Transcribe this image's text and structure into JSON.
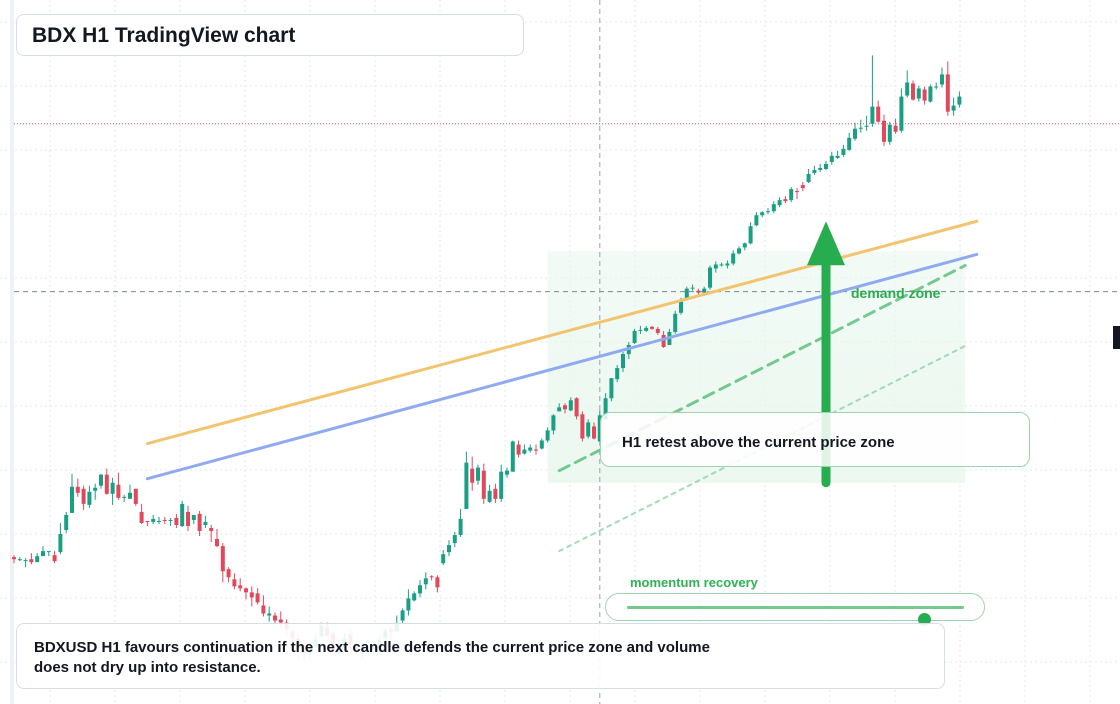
{
  "title": "BDX H1 TradingView chart",
  "annotations": {
    "retest": "H1 retest above the current price zone",
    "momentum": "momentum recovery",
    "demand": "demand zone",
    "summary": "BDXUSD H1 favours continuation if the next candle defends the current price zone and volume does not dry up into resistance."
  },
  "slider": {
    "value": 0.88
  },
  "colors": {
    "up": "#1a9e84",
    "down": "#e0485b",
    "support_orange": "#f3c46e",
    "support_blue": "#8faaf0",
    "accent_green": "#27ad4f",
    "resistance_red": "#e0485b"
  },
  "chart_data": {
    "type": "candlestick",
    "symbol": "BDXUSD",
    "timeframe": "H1",
    "y_axis": {
      "min": -300,
      "max": 400,
      "visible": false
    },
    "grid": true,
    "reference_lines": {
      "resistance": 277,
      "current_price": 110,
      "crosshair_candle": 101
    },
    "trend_lines": [
      {
        "name": "orange",
        "from": [
          23,
          -41
        ],
        "to": [
          166,
          180
        ]
      },
      {
        "name": "blue",
        "from": [
          23,
          -76
        ],
        "to": [
          166,
          147
        ]
      },
      {
        "name": "green-dashed",
        "from": [
          94,
          -68
        ],
        "to": [
          164,
          136
        ]
      },
      {
        "name": "green-dotted",
        "from": [
          94,
          -148
        ],
        "to": [
          164,
          56
        ]
      }
    ],
    "zones": [
      {
        "name": "demand-zone",
        "from": 92,
        "to": 164,
        "low": -80,
        "high": 150
      }
    ],
    "arrow": {
      "candle": 140,
      "from": -80,
      "to": 180
    },
    "candles": [
      {
        "o": -154,
        "c": -156,
        "h": -152,
        "l": -160
      },
      {
        "o": -157,
        "c": -156,
        "h": -154,
        "l": -158
      },
      {
        "o": -158,
        "c": -157,
        "h": -155,
        "l": -164
      },
      {
        "o": -156,
        "c": -159,
        "h": -150,
        "l": -161
      },
      {
        "o": -159,
        "c": -153,
        "h": -150,
        "l": -158
      },
      {
        "o": -153,
        "c": -148,
        "h": -143,
        "l": -152
      },
      {
        "o": -149,
        "c": -148,
        "h": -148,
        "l": -153
      },
      {
        "o": -152,
        "c": -158,
        "h": -148,
        "l": -160
      },
      {
        "o": -149,
        "c": -131,
        "h": -120,
        "l": -151
      },
      {
        "o": -127,
        "c": -112,
        "h": -109,
        "l": -130
      },
      {
        "o": -110,
        "c": -84,
        "h": -71,
        "l": -110
      },
      {
        "o": -84,
        "c": -90,
        "h": -76,
        "l": -94
      },
      {
        "o": -86,
        "c": -101,
        "h": -83,
        "l": -107
      },
      {
        "o": -102,
        "c": -89,
        "h": -83,
        "l": -105
      },
      {
        "o": -88,
        "c": -85,
        "h": -81,
        "l": -97
      },
      {
        "o": -83,
        "c": -72,
        "h": -71,
        "l": -86
      },
      {
        "o": -72,
        "c": -91,
        "h": -66,
        "l": -92
      },
      {
        "o": -91,
        "c": -80,
        "h": -75,
        "l": -102
      },
      {
        "o": -82,
        "c": -95,
        "h": -70,
        "l": -97
      },
      {
        "o": -95,
        "c": -94,
        "h": -92,
        "l": -99
      },
      {
        "o": -96,
        "c": -90,
        "h": -82,
        "l": -92
      },
      {
        "o": -86,
        "c": -101,
        "h": -86,
        "l": -103
      },
      {
        "o": -109,
        "c": -120,
        "h": -101,
        "l": -121
      },
      {
        "o": -118,
        "c": -119,
        "h": -118,
        "l": -123
      },
      {
        "o": -119,
        "c": -116,
        "h": -112,
        "l": -121
      },
      {
        "o": -118,
        "c": -118,
        "h": -114,
        "l": -121
      },
      {
        "o": -117,
        "c": -118,
        "h": -114,
        "l": -121
      },
      {
        "o": -118,
        "c": -117,
        "h": -115,
        "l": -123
      },
      {
        "o": -115,
        "c": -122,
        "h": -111,
        "l": -125
      },
      {
        "o": -123,
        "c": -101,
        "h": -98,
        "l": -124
      },
      {
        "o": -109,
        "c": -123,
        "h": -103,
        "l": -128
      },
      {
        "o": -117,
        "c": -112,
        "h": -113,
        "l": -121
      },
      {
        "o": -111,
        "c": -128,
        "h": -108,
        "l": -133
      },
      {
        "o": -122,
        "c": -119,
        "h": -113,
        "l": -125
      },
      {
        "o": -125,
        "c": -128,
        "h": -122,
        "l": -139
      },
      {
        "o": -136,
        "c": -143,
        "h": -126,
        "l": -144
      },
      {
        "o": -143,
        "c": -168,
        "h": -140,
        "l": -179
      },
      {
        "o": -166,
        "c": -174,
        "h": -164,
        "l": -179
      },
      {
        "o": -176,
        "c": -183,
        "h": -170,
        "l": -186
      },
      {
        "o": -182,
        "c": -185,
        "h": -175,
        "l": -188
      },
      {
        "o": -185,
        "c": -189,
        "h": -184,
        "l": -196
      },
      {
        "o": -189,
        "c": -194,
        "h": -183,
        "l": -203
      },
      {
        "o": -190,
        "c": -199,
        "h": -185,
        "l": -201
      },
      {
        "o": -202,
        "c": -210,
        "h": -192,
        "l": -213
      },
      {
        "o": -212,
        "c": -210,
        "h": -203,
        "l": -218
      },
      {
        "o": -212,
        "c": -217,
        "h": -209,
        "l": -221
      },
      {
        "o": -216,
        "c": -219,
        "h": -208,
        "l": -225
      },
      {
        "o": -219,
        "c": -226,
        "h": -216,
        "l": -231
      },
      {
        "o": -228,
        "c": -235,
        "h": -227,
        "l": -240
      },
      {
        "o": -235,
        "c": -245,
        "h": -231,
        "l": -256
      },
      {
        "o": -241,
        "c": -250,
        "h": -237,
        "l": -258
      },
      {
        "o": -249,
        "c": -244,
        "h": -239,
        "l": -256
      },
      {
        "o": -244,
        "c": -236,
        "h": -230,
        "l": -240
      },
      {
        "o": -233,
        "c": -222,
        "h": -219,
        "l": -228
      },
      {
        "o": -224,
        "c": -232,
        "h": -219,
        "l": -233
      },
      {
        "o": -230,
        "c": -247,
        "h": -228,
        "l": -251
      },
      {
        "o": -250,
        "c": -244,
        "h": -238,
        "l": -250
      },
      {
        "o": -245,
        "c": -235,
        "h": -229,
        "l": -240
      },
      {
        "o": -231,
        "c": -241,
        "h": -227,
        "l": -246
      },
      {
        "o": -240,
        "c": -247,
        "h": -238,
        "l": -250
      },
      {
        "o": -250,
        "c": -248,
        "h": -240,
        "l": -255
      },
      {
        "o": -246,
        "c": -245,
        "h": -242,
        "l": -251
      },
      {
        "o": -246,
        "c": -244,
        "h": -241,
        "l": -251
      },
      {
        "o": -248,
        "c": -236,
        "h": -232,
        "l": -249
      },
      {
        "o": -234,
        "c": -227,
        "h": -225,
        "l": -238
      },
      {
        "o": -226,
        "c": -228,
        "h": -223,
        "l": -236
      },
      {
        "o": -228,
        "c": -220,
        "h": -212,
        "l": -228
      },
      {
        "o": -217,
        "c": -207,
        "h": -205,
        "l": -220
      },
      {
        "o": -207,
        "c": -195,
        "h": -186,
        "l": -212
      },
      {
        "o": -197,
        "c": -190,
        "h": -188,
        "l": -198
      },
      {
        "o": -190,
        "c": -182,
        "h": -177,
        "l": -194
      },
      {
        "o": -181,
        "c": -175,
        "h": -169,
        "l": -186
      },
      {
        "o": -173,
        "c": -174,
        "h": -172,
        "l": -177
      },
      {
        "o": -174,
        "c": -184,
        "h": -172,
        "l": -189
      },
      {
        "o": -160,
        "c": -151,
        "h": -147,
        "l": -162
      },
      {
        "o": -149,
        "c": -142,
        "h": -137,
        "l": -153
      },
      {
        "o": -140,
        "c": -132,
        "h": -129,
        "l": -144
      },
      {
        "o": -132,
        "c": -116,
        "h": -106,
        "l": -134
      },
      {
        "o": -106,
        "c": -60,
        "h": -49,
        "l": -106
      },
      {
        "o": -66,
        "c": -80,
        "h": -54,
        "l": -88
      },
      {
        "o": -78,
        "c": -65,
        "h": -62,
        "l": -82
      },
      {
        "o": -68,
        "c": -96,
        "h": -61,
        "l": -101
      },
      {
        "o": -99,
        "c": -88,
        "h": -82,
        "l": -100
      },
      {
        "o": -86,
        "c": -96,
        "h": -81,
        "l": -100
      },
      {
        "o": -96,
        "c": -69,
        "h": -62,
        "l": -99
      },
      {
        "o": -72,
        "c": -68,
        "h": -65,
        "l": -75
      },
      {
        "o": -69,
        "c": -39,
        "h": -38,
        "l": -69
      },
      {
        "o": -42,
        "c": -52,
        "h": -38,
        "l": -55
      },
      {
        "o": -51,
        "c": -47,
        "h": -42,
        "l": -52
      },
      {
        "o": -48,
        "c": -45,
        "h": -42,
        "l": -50
      },
      {
        "o": -47,
        "c": -48,
        "h": -42,
        "l": -52
      },
      {
        "o": -46,
        "c": -38,
        "h": -36,
        "l": -47
      },
      {
        "o": -38,
        "c": -28,
        "h": -25,
        "l": -40
      },
      {
        "o": -28,
        "c": -13,
        "h": -12,
        "l": -32
      },
      {
        "o": -9,
        "c": -5,
        "h": -1,
        "l": -9
      },
      {
        "o": -3,
        "c": -7,
        "h": -1,
        "l": -11
      },
      {
        "o": -8,
        "c": 2,
        "h": 5,
        "l": -9
      },
      {
        "o": 4,
        "c": -14,
        "h": 5,
        "l": -17
      },
      {
        "o": -12,
        "c": -36,
        "h": -9,
        "l": -39
      },
      {
        "o": -34,
        "c": -20,
        "h": -17,
        "l": -36
      },
      {
        "o": -24,
        "c": -36,
        "h": -20,
        "l": -37
      },
      {
        "o": -39,
        "c": -13,
        "h": -8,
        "l": -39
      },
      {
        "o": -17,
        "c": 4,
        "h": 9,
        "l": -17
      },
      {
        "o": 4,
        "c": 24,
        "h": 24,
        "l": 1
      },
      {
        "o": 23,
        "c": 34,
        "h": 37,
        "l": 20
      },
      {
        "o": 34,
        "c": 48,
        "h": 50,
        "l": 30
      },
      {
        "o": 48,
        "c": 57,
        "h": 60,
        "l": 43
      },
      {
        "o": 59,
        "c": 71,
        "h": 73,
        "l": 58
      },
      {
        "o": 72,
        "c": 72,
        "h": 76,
        "l": 68
      },
      {
        "o": 71,
        "c": 74,
        "h": 76,
        "l": 70
      },
      {
        "o": 75,
        "c": 73,
        "h": 76,
        "l": 72
      },
      {
        "o": 73,
        "c": 69,
        "h": 75,
        "l": 67
      },
      {
        "o": 67,
        "c": 55,
        "h": 71,
        "l": 54
      },
      {
        "o": 57,
        "c": 70,
        "h": 73,
        "l": 57
      },
      {
        "o": 70,
        "c": 88,
        "h": 91,
        "l": 68
      },
      {
        "o": 89,
        "c": 102,
        "h": 104,
        "l": 87
      },
      {
        "o": 103,
        "c": 113,
        "h": 115,
        "l": 102
      },
      {
        "o": 114,
        "c": 114,
        "h": 117,
        "l": 111
      },
      {
        "o": 111,
        "c": 109,
        "h": 113,
        "l": 107
      },
      {
        "o": 109,
        "c": 113,
        "h": 115,
        "l": 106
      },
      {
        "o": 114,
        "c": 134,
        "h": 136,
        "l": 112
      },
      {
        "o": 133,
        "c": 137,
        "h": 140,
        "l": 129
      },
      {
        "o": 136,
        "c": 137,
        "h": 139,
        "l": 135
      },
      {
        "o": 136,
        "c": 138,
        "h": 141,
        "l": 133
      },
      {
        "o": 138,
        "c": 148,
        "h": 151,
        "l": 136
      },
      {
        "o": 148,
        "c": 153,
        "h": 155,
        "l": 147
      },
      {
        "o": 154,
        "c": 158,
        "h": 159,
        "l": 151
      },
      {
        "o": 158,
        "c": 175,
        "h": 179,
        "l": 157
      },
      {
        "o": 176,
        "c": 186,
        "h": 189,
        "l": 175
      },
      {
        "o": 186,
        "c": 189,
        "h": 190,
        "l": 184
      },
      {
        "o": 189,
        "c": 190,
        "h": 193,
        "l": 187
      },
      {
        "o": 190,
        "c": 197,
        "h": 200,
        "l": 188
      },
      {
        "o": 196,
        "c": 201,
        "h": 204,
        "l": 194
      },
      {
        "o": 202,
        "c": 200,
        "h": 205,
        "l": 198
      },
      {
        "o": 201,
        "c": 212,
        "h": 214,
        "l": 199
      },
      {
        "o": 210,
        "c": 209,
        "h": 213,
        "l": 202
      },
      {
        "o": 216,
        "c": 213,
        "h": 219,
        "l": 210
      },
      {
        "o": 219,
        "c": 227,
        "h": 232,
        "l": 218
      },
      {
        "o": 228,
        "c": 231,
        "h": 235,
        "l": 226
      },
      {
        "o": 231,
        "c": 233,
        "h": 237,
        "l": 229
      },
      {
        "o": 232,
        "c": 237,
        "h": 240,
        "l": 231
      },
      {
        "o": 239,
        "c": 245,
        "h": 249,
        "l": 236
      },
      {
        "o": 243,
        "c": 245,
        "h": 250,
        "l": 242
      },
      {
        "o": 246,
        "c": 252,
        "h": 256,
        "l": 244
      },
      {
        "o": 251,
        "c": 263,
        "h": 268,
        "l": 250
      },
      {
        "o": 262,
        "c": 272,
        "h": 278,
        "l": 260
      },
      {
        "o": 273,
        "c": 273,
        "h": 281,
        "l": 268
      },
      {
        "o": 274,
        "c": 275,
        "h": 285,
        "l": 270
      },
      {
        "o": 277,
        "c": 294,
        "h": 345,
        "l": 274
      },
      {
        "o": 294,
        "c": 279,
        "h": 300,
        "l": 278
      },
      {
        "o": 280,
        "c": 259,
        "h": 286,
        "l": 255
      },
      {
        "o": 259,
        "c": 276,
        "h": 279,
        "l": 256
      },
      {
        "o": 275,
        "c": 269,
        "h": 282,
        "l": 267
      },
      {
        "o": 270,
        "c": 304,
        "h": 312,
        "l": 268
      },
      {
        "o": 305,
        "c": 318,
        "h": 330,
        "l": 303
      },
      {
        "o": 317,
        "c": 301,
        "h": 320,
        "l": 300
      },
      {
        "o": 302,
        "c": 312,
        "h": 315,
        "l": 299
      },
      {
        "o": 311,
        "c": 300,
        "h": 314,
        "l": 296
      },
      {
        "o": 299,
        "c": 314,
        "h": 316,
        "l": 298
      },
      {
        "o": 313,
        "c": 314,
        "h": 318,
        "l": 311
      },
      {
        "o": 316,
        "c": 326,
        "h": 333,
        "l": 313
      },
      {
        "o": 326,
        "c": 289,
        "h": 339,
        "l": 285
      },
      {
        "o": 290,
        "c": 295,
        "h": 303,
        "l": 285
      },
      {
        "o": 296,
        "c": 304,
        "h": 309,
        "l": 293
      }
    ]
  }
}
